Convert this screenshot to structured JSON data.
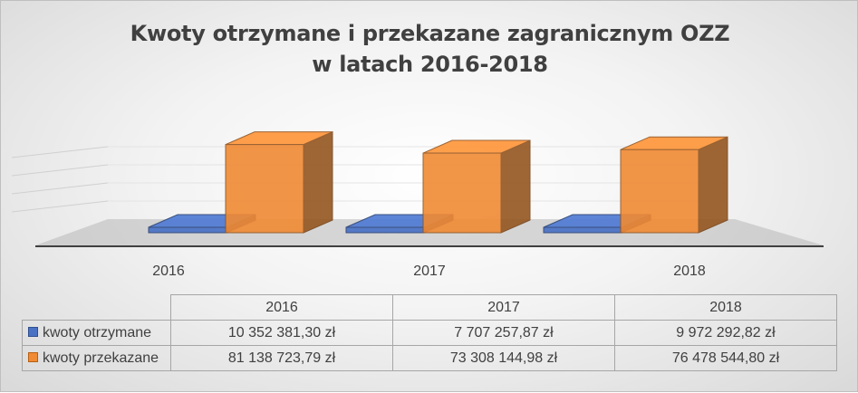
{
  "chart_data": {
    "type": "bar",
    "title_lines": [
      "Kwoty otrzymane i przekazane zagranicznym OZZ",
      "w latach 2016-2018"
    ],
    "categories": [
      "2016",
      "2017",
      "2018"
    ],
    "series": [
      {
        "name": "kwoty otrzymane",
        "values": [
          10352381.3,
          7707257.87,
          9972292.82
        ],
        "color": "#4a72c4"
      },
      {
        "name": "kwoty przekazane",
        "values": [
          81138723.79,
          73308144.98,
          76478544.8
        ],
        "color": "#f08a34"
      }
    ],
    "data_table": {
      "header": [
        "2016",
        "2017",
        "2018"
      ],
      "rows": [
        {
          "label": "kwoty otrzymane",
          "cells": [
            "10 352 381,30 zł",
            "7 707 257,87 zł",
            "9 972 292,82 zł"
          ]
        },
        {
          "label": "kwoty przekazane",
          "cells": [
            "81 138 723,79 zł",
            "73 308 144,98 zł",
            "76 478 544,80 zł"
          ]
        }
      ]
    },
    "ylim": [
      0,
      100000000
    ],
    "style": "3d-bar",
    "grid": true,
    "legend": "data-table"
  }
}
